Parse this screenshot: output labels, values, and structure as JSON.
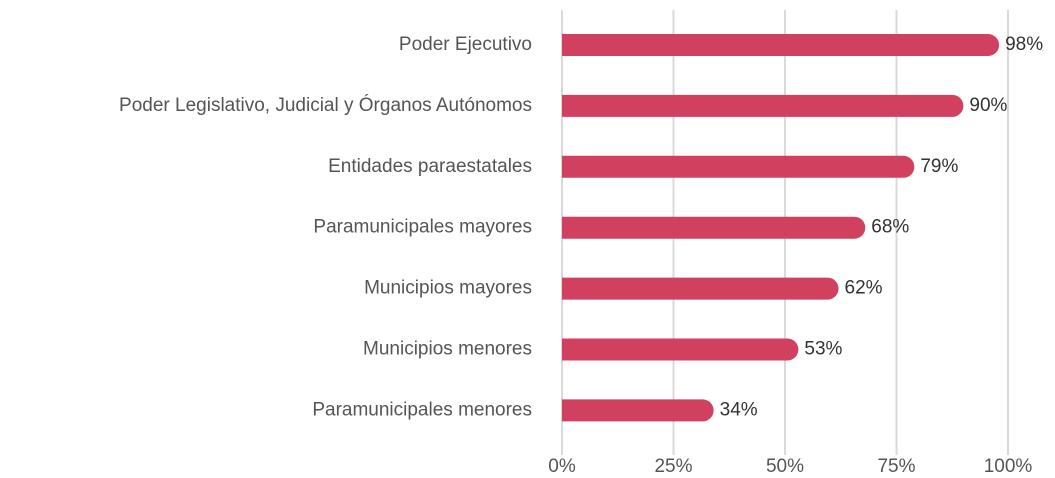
{
  "chart_data": {
    "type": "bar",
    "orientation": "horizontal",
    "categories": [
      "Poder Ejecutivo",
      "Poder Legislativo, Judicial y Órganos Autónomos",
      "Entidades paraestatales",
      "Paramunicipales mayores",
      "Municipios mayores",
      "Municipios menores",
      "Paramunicipales menores"
    ],
    "values": [
      98,
      90,
      79,
      68,
      62,
      53,
      34
    ],
    "value_labels": [
      "98%",
      "90%",
      "79%",
      "68%",
      "62%",
      "53%",
      "34%"
    ],
    "color": "#d1405e",
    "xlim": [
      0,
      100
    ],
    "xticks": [
      {
        "value": 0,
        "label": "0%"
      },
      {
        "value": 25,
        "label": "25%"
      },
      {
        "value": 50,
        "label": "50%"
      },
      {
        "value": 75,
        "label": "75%"
      },
      {
        "value": 100,
        "label": "100%"
      }
    ],
    "grid": true
  }
}
